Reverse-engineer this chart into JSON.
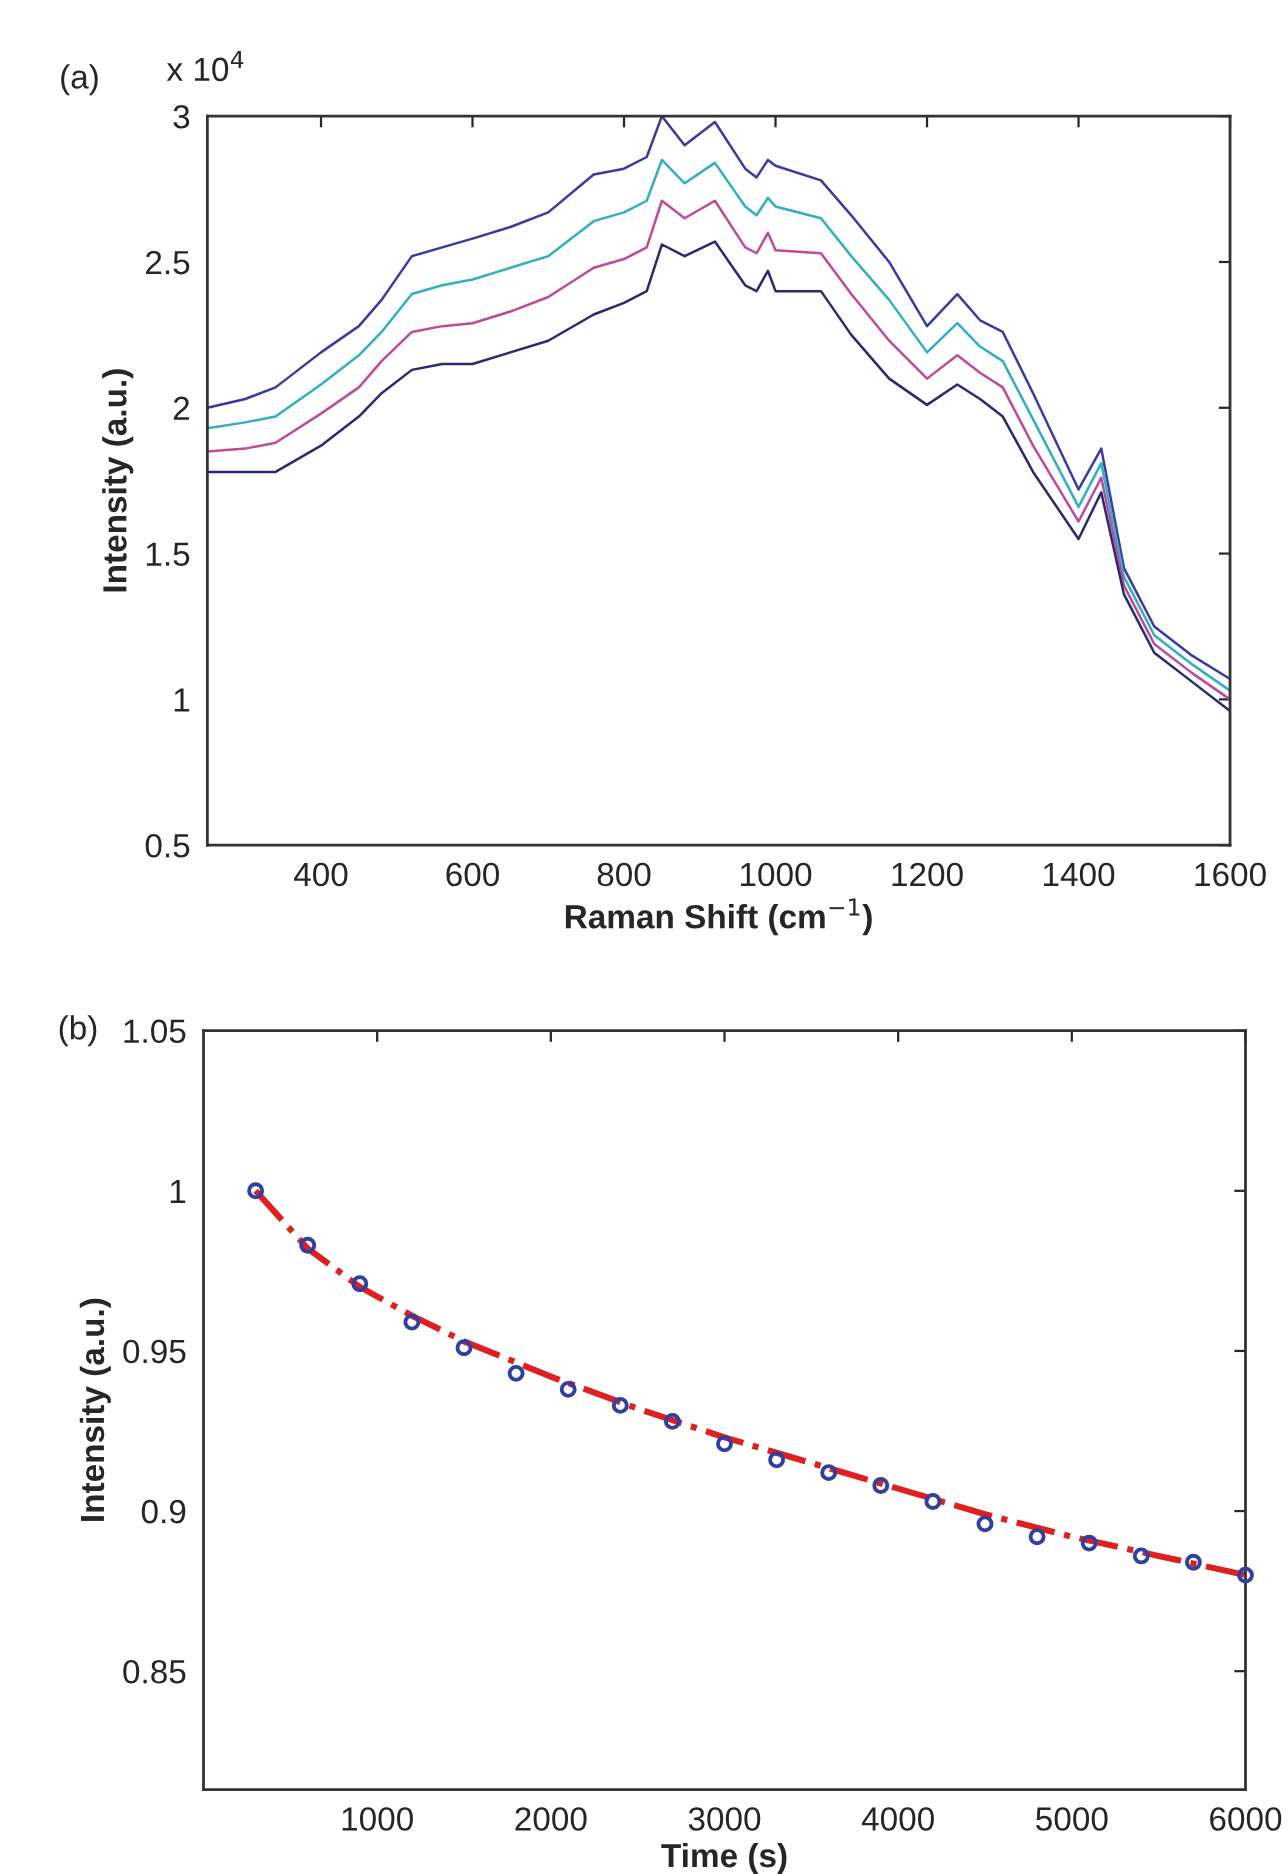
{
  "chart_data": [
    {
      "type": "line",
      "xlabel": "Raman Shift (cm$^{−1}$)",
      "ylabel": "Intensity (a.u.)",
      "annotations": [
        "(a)",
        "x 10$^{4}$"
      ],
      "x": [
        250,
        300,
        340,
        400,
        450,
        480,
        520,
        560,
        600,
        650,
        700,
        760,
        800,
        830,
        850,
        880,
        920,
        960,
        975,
        990,
        1000,
        1060,
        1100,
        1150,
        1200,
        1240,
        1270,
        1300,
        1340,
        1400,
        1430,
        1460,
        1500,
        1550,
        1600
      ],
      "series": [
        {
          "color": "#3a3aa0",
          "values": [
            2.0,
            2.03,
            2.07,
            2.19,
            2.28,
            2.37,
            2.52,
            2.55,
            2.58,
            2.62,
            2.67,
            2.8,
            2.82,
            2.86,
            3.0,
            2.9,
            2.98,
            2.82,
            2.79,
            2.85,
            2.83,
            2.78,
            2.66,
            2.5,
            2.28,
            2.39,
            2.3,
            2.26,
            2.05,
            1.72,
            1.86,
            1.45,
            1.25,
            1.15,
            1.07
          ]
        },
        {
          "color": "#30b0c0",
          "values": [
            1.93,
            1.95,
            1.97,
            2.08,
            2.18,
            2.26,
            2.39,
            2.42,
            2.44,
            2.48,
            2.52,
            2.64,
            2.67,
            2.71,
            2.85,
            2.77,
            2.84,
            2.69,
            2.66,
            2.72,
            2.69,
            2.65,
            2.52,
            2.37,
            2.19,
            2.29,
            2.21,
            2.16,
            1.96,
            1.66,
            1.81,
            1.42,
            1.22,
            1.12,
            1.03
          ]
        },
        {
          "color": "#c04a9a",
          "values": [
            1.85,
            1.86,
            1.88,
            1.98,
            2.07,
            2.16,
            2.26,
            2.28,
            2.29,
            2.33,
            2.38,
            2.48,
            2.51,
            2.55,
            2.71,
            2.65,
            2.71,
            2.55,
            2.53,
            2.6,
            2.54,
            2.53,
            2.39,
            2.23,
            2.1,
            2.18,
            2.12,
            2.07,
            1.87,
            1.61,
            1.76,
            1.39,
            1.19,
            1.09,
            1.0
          ]
        },
        {
          "color": "#2a2a70",
          "values": [
            1.78,
            1.78,
            1.78,
            1.87,
            1.97,
            2.05,
            2.13,
            2.15,
            2.15,
            2.19,
            2.23,
            2.32,
            2.36,
            2.4,
            2.56,
            2.52,
            2.57,
            2.42,
            2.4,
            2.47,
            2.4,
            2.4,
            2.25,
            2.1,
            2.01,
            2.08,
            2.03,
            1.97,
            1.78,
            1.55,
            1.71,
            1.36,
            1.16,
            1.06,
            0.96
          ]
        }
      ],
      "xlim": [
        250,
        1600
      ],
      "xticks": [
        400,
        600,
        800,
        1000,
        1200,
        1400,
        1600
      ],
      "ylim": [
        0.5,
        3
      ],
      "yticks": [
        0.5,
        1,
        1.5,
        2,
        2.5,
        3
      ],
      "grid": false,
      "legend": false
    },
    {
      "type": "scatter",
      "xlabel": "Time (s)",
      "ylabel": "Intensity (a.u.)",
      "annotations": [
        "(b)"
      ],
      "series": [
        {
          "type": "scatter",
          "color": "#3040a0",
          "marker": "circle",
          "x": [
            300,
            600,
            900,
            1200,
            1500,
            1800,
            2100,
            2400,
            2700,
            3000,
            3300,
            3600,
            3900,
            4200,
            4500,
            4800,
            5100,
            5400,
            5700,
            6000
          ],
          "values": [
            1.0,
            0.983,
            0.971,
            0.959,
            0.951,
            0.943,
            0.938,
            0.933,
            0.928,
            0.921,
            0.916,
            0.912,
            0.908,
            0.903,
            0.896,
            0.892,
            0.89,
            0.886,
            0.884,
            0.88
          ]
        },
        {
          "type": "line",
          "color": "#e02020",
          "line_style": "dashdot",
          "x": [
            300,
            600,
            900,
            1200,
            1500,
            2000,
            2500,
            3000,
            3500,
            4000,
            4500,
            5000,
            5500,
            6000
          ],
          "values": [
            1.0,
            0.982,
            0.97,
            0.961,
            0.953,
            0.942,
            0.932,
            0.923,
            0.915,
            0.907,
            0.899,
            0.892,
            0.886,
            0.88
          ]
        }
      ],
      "xlim": [
        0,
        6000
      ],
      "xticks": [
        1000,
        2000,
        3000,
        4000,
        5000,
        6000
      ],
      "ylim": [
        0.813,
        1.05
      ],
      "yticks": [
        0.85,
        0.9,
        0.95,
        1,
        1.05
      ],
      "grid": false,
      "legend": false
    }
  ]
}
